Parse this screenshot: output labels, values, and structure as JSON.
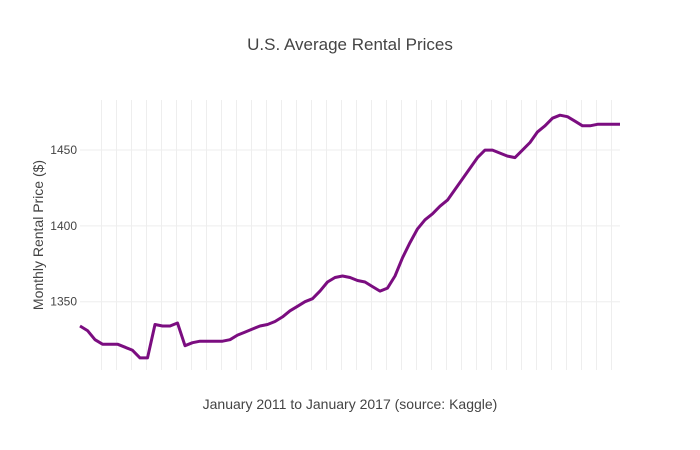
{
  "chart_data": {
    "type": "line",
    "title": "U.S. Average Rental Prices",
    "xlabel": "January 2011 to January 2017 (source: Kaggle)",
    "ylabel": "Monthly Rental Price ($)",
    "ylim": [
      1305,
      1483
    ],
    "y_ticks": [
      1350,
      1400,
      1450
    ],
    "x_ticks_shown": false,
    "grid": true,
    "series_color": "#7b0d80",
    "grid_color": "#eeeeee",
    "text_color": "#444444",
    "x": [
      0,
      1,
      2,
      3,
      4,
      5,
      6,
      7,
      8,
      9,
      10,
      11,
      12,
      13,
      14,
      15,
      16,
      17,
      18,
      19,
      20,
      21,
      22,
      23,
      24,
      25,
      26,
      27,
      28,
      29,
      30,
      31,
      32,
      33,
      34,
      35,
      36,
      37,
      38,
      39,
      40,
      41,
      42,
      43,
      44,
      45,
      46,
      47,
      48,
      49,
      50,
      51,
      52,
      53,
      54,
      55,
      56,
      57,
      58,
      59,
      60,
      61,
      62,
      63,
      64,
      65,
      66,
      67,
      68,
      69,
      70,
      71,
      72
    ],
    "values": [
      1334,
      1331,
      1325,
      1322,
      1322,
      1322,
      1320,
      1318,
      1313,
      1313,
      1335,
      1334,
      1334,
      1336,
      1321,
      1323,
      1324,
      1324,
      1324,
      1324,
      1325,
      1328,
      1330,
      1332,
      1334,
      1335,
      1337,
      1340,
      1344,
      1347,
      1350,
      1352,
      1357,
      1363,
      1366,
      1367,
      1366,
      1364,
      1363,
      1360,
      1357,
      1359,
      1367,
      1379,
      1389,
      1398,
      1404,
      1408,
      1413,
      1417,
      1424,
      1431,
      1438,
      1445,
      1450,
      1450,
      1448,
      1446,
      1445,
      1450,
      1455,
      1462,
      1466,
      1471,
      1473,
      1472,
      1469,
      1466,
      1466,
      1467,
      1467,
      1467,
      1467
    ]
  }
}
